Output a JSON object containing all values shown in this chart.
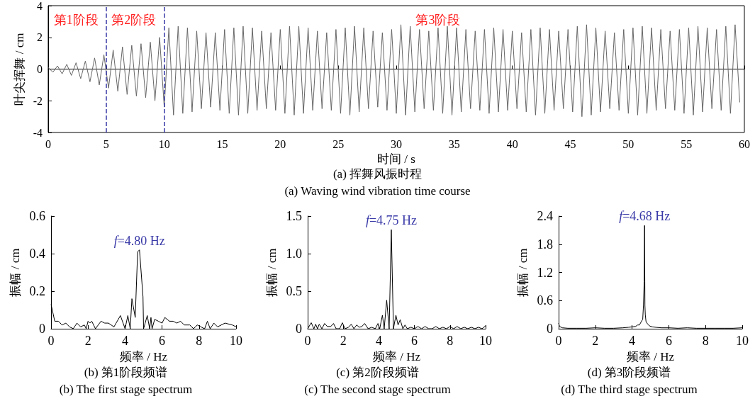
{
  "chart_data": [
    {
      "type": "line",
      "title": "(a) 挥舞风振时程",
      "subtitle": "(a) Waving wind vibration time course",
      "xlabel": "时间 / s",
      "ylabel": "叶尖挥舞 / cm",
      "xlim": [
        0,
        60
      ],
      "ylim": [
        -4,
        4
      ],
      "xticks": [
        0,
        5,
        10,
        15,
        20,
        25,
        30,
        35,
        40,
        45,
        50,
        55,
        60
      ],
      "yticks": [
        -4,
        -2,
        0,
        2,
        4
      ],
      "marker": "none",
      "ref_lines": [
        {
          "axis": "x",
          "value": 5,
          "color": "#3a3aa8",
          "line_style": "dashed"
        },
        {
          "axis": "x",
          "value": 10,
          "color": "#3a3aa8",
          "line_style": "dashed"
        }
      ],
      "annotations": [
        "第1阶段",
        "第2阶段",
        "第3阶段"
      ],
      "series": [
        {
          "color": "#666666",
          "x": [
            0,
            0.4,
            0.8,
            1.2,
            1.6,
            2,
            2.4,
            2.8,
            3.2,
            3.6,
            4,
            4.4,
            4.8,
            5.2,
            5.6,
            6,
            6.4,
            6.8,
            7.2,
            7.6,
            8,
            8.4,
            8.8,
            9.2,
            9.6,
            10,
            10.4,
            10.8,
            11.2,
            11.6,
            12,
            12.4,
            12.8,
            13.2,
            13.6,
            14,
            14.4,
            14.8,
            15.2,
            15.6,
            16,
            16.4,
            16.8,
            17.2,
            17.6,
            18,
            18.4,
            18.8,
            19.2,
            19.6,
            20,
            20.4,
            20.8,
            21.2,
            21.6,
            22,
            22.4,
            22.8,
            23.2,
            23.6,
            24,
            24.4,
            24.8,
            25.2,
            25.6,
            26,
            26.4,
            26.8,
            27.2,
            27.6,
            28,
            28.4,
            28.8,
            29.2,
            29.6,
            30,
            30.4,
            30.8,
            31.2,
            31.6,
            32,
            32.4,
            32.8,
            33.2,
            33.6,
            34,
            34.4,
            34.8,
            35.2,
            35.6,
            36,
            36.4,
            36.8,
            37.2,
            37.6,
            38,
            38.4,
            38.8,
            39.2,
            39.6,
            40,
            40.4,
            40.8,
            41.2,
            41.6,
            42,
            42.4,
            42.8,
            43.2,
            43.6,
            44,
            44.4,
            44.8,
            45.2,
            45.6,
            46,
            46.4,
            46.8,
            47.2,
            47.6,
            48,
            48.4,
            48.8,
            49.2,
            49.6,
            50,
            50.4,
            50.8,
            51.2,
            51.6,
            52,
            52.4,
            52.8,
            53.2,
            53.6,
            54,
            54.4,
            54.8,
            55.2,
            55.6,
            56,
            56.4,
            56.8,
            57.2,
            57.6,
            58,
            58.4,
            58.8,
            59.2,
            59.6
          ],
          "values": [
            0.1,
            -0.2,
            0.2,
            -0.3,
            0.3,
            -0.4,
            0.4,
            -0.6,
            0.5,
            -0.8,
            0.7,
            -1.0,
            0.9,
            -1.2,
            1.2,
            -1.4,
            1.4,
            -1.6,
            1.5,
            -1.7,
            1.6,
            -1.8,
            1.7,
            -2.0,
            2.0,
            -2.4,
            2.6,
            -2.9,
            2.7,
            -2.8,
            2.6,
            -2.7,
            2.4,
            -2.5,
            2.3,
            -2.4,
            2.3,
            -2.6,
            2.5,
            -2.8,
            2.6,
            -2.9,
            2.7,
            -2.8,
            2.6,
            -2.6,
            2.4,
            -2.5,
            2.3,
            -2.6,
            2.5,
            -2.8,
            2.7,
            -2.9,
            2.7,
            -2.8,
            2.6,
            -2.6,
            2.4,
            -2.5,
            2.3,
            -2.6,
            2.5,
            -2.8,
            2.6,
            -2.9,
            2.7,
            -2.7,
            2.6,
            -2.5,
            2.4,
            -2.4,
            2.3,
            -2.6,
            2.5,
            -2.8,
            2.8,
            -2.9,
            2.7,
            -2.7,
            2.5,
            -2.5,
            2.4,
            -2.6,
            2.6,
            -2.8,
            2.7,
            -2.9,
            2.6,
            -2.7,
            2.5,
            -2.5,
            2.4,
            -2.6,
            2.5,
            -2.8,
            2.6,
            -2.7,
            2.5,
            -2.6,
            2.4,
            -2.5,
            2.3,
            -2.7,
            2.5,
            -2.9,
            2.6,
            -2.8,
            2.5,
            -2.6,
            2.4,
            -2.5,
            2.5,
            -2.7,
            2.7,
            -3.0,
            2.8,
            -2.9,
            2.6,
            -2.7,
            2.4,
            -2.5,
            2.3,
            -2.6,
            2.5,
            -2.8,
            2.6,
            -2.9,
            2.7,
            -2.8,
            2.6,
            -2.6,
            2.5,
            -2.5,
            2.4,
            -2.6,
            2.5,
            -2.8,
            2.6,
            -2.9,
            2.7,
            -2.7,
            2.6,
            -2.5,
            2.5,
            -2.6,
            2.7,
            -2.8,
            2.8,
            -2.1
          ]
        }
      ]
    },
    {
      "type": "line",
      "title": "(b) 第1阶段频谱",
      "subtitle": "(b) The first stage spectrum",
      "xlabel": "频率 / Hz",
      "ylabel": "振幅 / cm",
      "xlim": [
        0,
        10
      ],
      "ylim": [
        0,
        0.6
      ],
      "xticks": [
        0,
        2,
        4,
        6,
        8,
        10
      ],
      "yticks": [
        0,
        0.2,
        0.4,
        0.6
      ],
      "marker": "none",
      "annotations": [
        {
          "text": "f=4.80 Hz",
          "x": 4.78,
          "y": 0.42
        }
      ],
      "series": [
        {
          "color": "#000000",
          "x": [
            0,
            0.2,
            0.4,
            0.6,
            0.8,
            1.0,
            1.2,
            1.4,
            1.6,
            1.8,
            1.9,
            2.0,
            2.1,
            2.2,
            2.4,
            2.7,
            2.9,
            3.1,
            3.4,
            3.75,
            4.0,
            4.15,
            4.28,
            4.37,
            4.55,
            4.68,
            4.78,
            4.97,
            5.0,
            5.2,
            5.33,
            5.4,
            5.46,
            5.6,
            5.8,
            6.0,
            6.15,
            6.4,
            6.6,
            6.8,
            7.0,
            7.2,
            7.5,
            7.7,
            7.9,
            8.1,
            8.3,
            8.45,
            8.6,
            8.8,
            9.0,
            9.4,
            9.8,
            10
          ],
          "values": [
            0.13,
            0.04,
            0.04,
            0.02,
            0.03,
            0.01,
            0,
            0.03,
            0.01,
            0.02,
            0,
            0.04,
            0.03,
            0.04,
            0,
            0.04,
            0.03,
            0.03,
            0.01,
            0.07,
            0,
            0.07,
            0,
            0.16,
            0.06,
            0.41,
            0.42,
            0.17,
            0,
            0.07,
            0,
            0.06,
            0,
            0.05,
            0.04,
            0.03,
            0.06,
            0.04,
            0.04,
            0.03,
            0.04,
            0.02,
            0.02,
            0,
            0.02,
            0.01,
            0,
            0.04,
            0,
            0.03,
            0.01,
            0.03,
            0.02,
            0.01
          ]
        }
      ]
    },
    {
      "type": "line",
      "title": "(c) 第2阶段频谱",
      "subtitle": "(c) The second stage spectrum",
      "xlabel": "频率 / Hz",
      "ylabel": "振幅 / cm",
      "xlim": [
        0,
        10
      ],
      "ylim": [
        0,
        1.5
      ],
      "xticks": [
        0,
        2,
        4,
        6,
        8,
        10
      ],
      "yticks": [
        0,
        0.5,
        {
          "value": 1,
          "label": "1.0"
        },
        1.5
      ],
      "marker": "none",
      "annotations": [
        {
          "text": "f=4.75 Hz",
          "x": 4.7,
          "y": 1.32
        }
      ],
      "series": [
        {
          "color": "#000000",
          "x": [
            0,
            0.2,
            0.35,
            0.45,
            0.55,
            0.65,
            0.8,
            0.95,
            1.1,
            1.3,
            1.45,
            1.6,
            1.8,
            1.95,
            2.1,
            2.3,
            2.45,
            2.6,
            2.75,
            2.9,
            3.05,
            3.2,
            3.4,
            3.6,
            3.8,
            3.95,
            4.05,
            4.2,
            4.3,
            4.44,
            4.58,
            4.7,
            4.82,
            4.96,
            5.08,
            5.2,
            5.35,
            5.47,
            5.6,
            5.8,
            6.0,
            6.2,
            6.4,
            6.6,
            6.8,
            7.0,
            7.2,
            7.4,
            7.6,
            7.8,
            8.0,
            8.2,
            8.4,
            8.6,
            8.8,
            9.0,
            9.2,
            9.4,
            9.6,
            9.8,
            10
          ],
          "values": [
            0,
            0.08,
            0,
            0.06,
            0,
            0.06,
            0,
            0.07,
            0.03,
            0.03,
            0.07,
            0,
            0,
            0.08,
            0,
            0.02,
            0.06,
            0,
            0.05,
            0.02,
            0.03,
            0.07,
            0,
            0.02,
            0,
            0.07,
            0,
            0.18,
            0,
            0.38,
            0,
            1.32,
            0,
            0.18,
            0.05,
            0.12,
            0,
            0.05,
            0,
            0.02,
            0,
            0.03,
            0,
            0.03,
            0,
            0,
            0.03,
            0,
            0.02,
            0,
            0.03,
            0,
            0.03,
            0,
            0.02,
            0,
            0.02,
            0,
            0.02,
            0,
            0.04
          ]
        }
      ]
    },
    {
      "type": "line",
      "title": "(d) 第3阶段频谱",
      "subtitle": "(d) The third stage spectrum",
      "xlabel": "频率 / Hz",
      "ylabel": "振幅 / cm",
      "xlim": [
        0,
        10
      ],
      "ylim": [
        0,
        2.4
      ],
      "xticks": [
        0,
        2,
        4,
        6,
        8,
        10
      ],
      "yticks": [
        0,
        0.6,
        1.2,
        1.8,
        2.4
      ],
      "marker": "none",
      "annotations": [
        {
          "text": "f=4.68 Hz",
          "x": 4.68,
          "y": 2.2
        }
      ],
      "series": [
        {
          "color": "#000000",
          "x": [
            0,
            0.05,
            0.2,
            0.5,
            1,
            1.5,
            2,
            2.5,
            3,
            3.5,
            3.8,
            4.0,
            4.2,
            4.3,
            4.4,
            4.5,
            4.58,
            4.62,
            4.66,
            4.68,
            4.7,
            4.72,
            4.76,
            4.85,
            4.95,
            5.1,
            5.3,
            5.6,
            6,
            6.5,
            7,
            7.5,
            8,
            8.5,
            9,
            9.5,
            10
          ],
          "values": [
            0.12,
            0.05,
            0.02,
            0.01,
            0.01,
            0.01,
            0.02,
            0.01,
            0.01,
            0.02,
            0.03,
            0.04,
            0.05,
            0.08,
            0.08,
            0.15,
            0.2,
            0.5,
            1.0,
            2.2,
            0.5,
            0.3,
            0.15,
            0.1,
            0.06,
            0.04,
            0.03,
            0.02,
            0.02,
            0.01,
            0.02,
            0.01,
            0.01,
            0.01,
            0.01,
            0.01,
            0.02
          ]
        }
      ]
    }
  ]
}
